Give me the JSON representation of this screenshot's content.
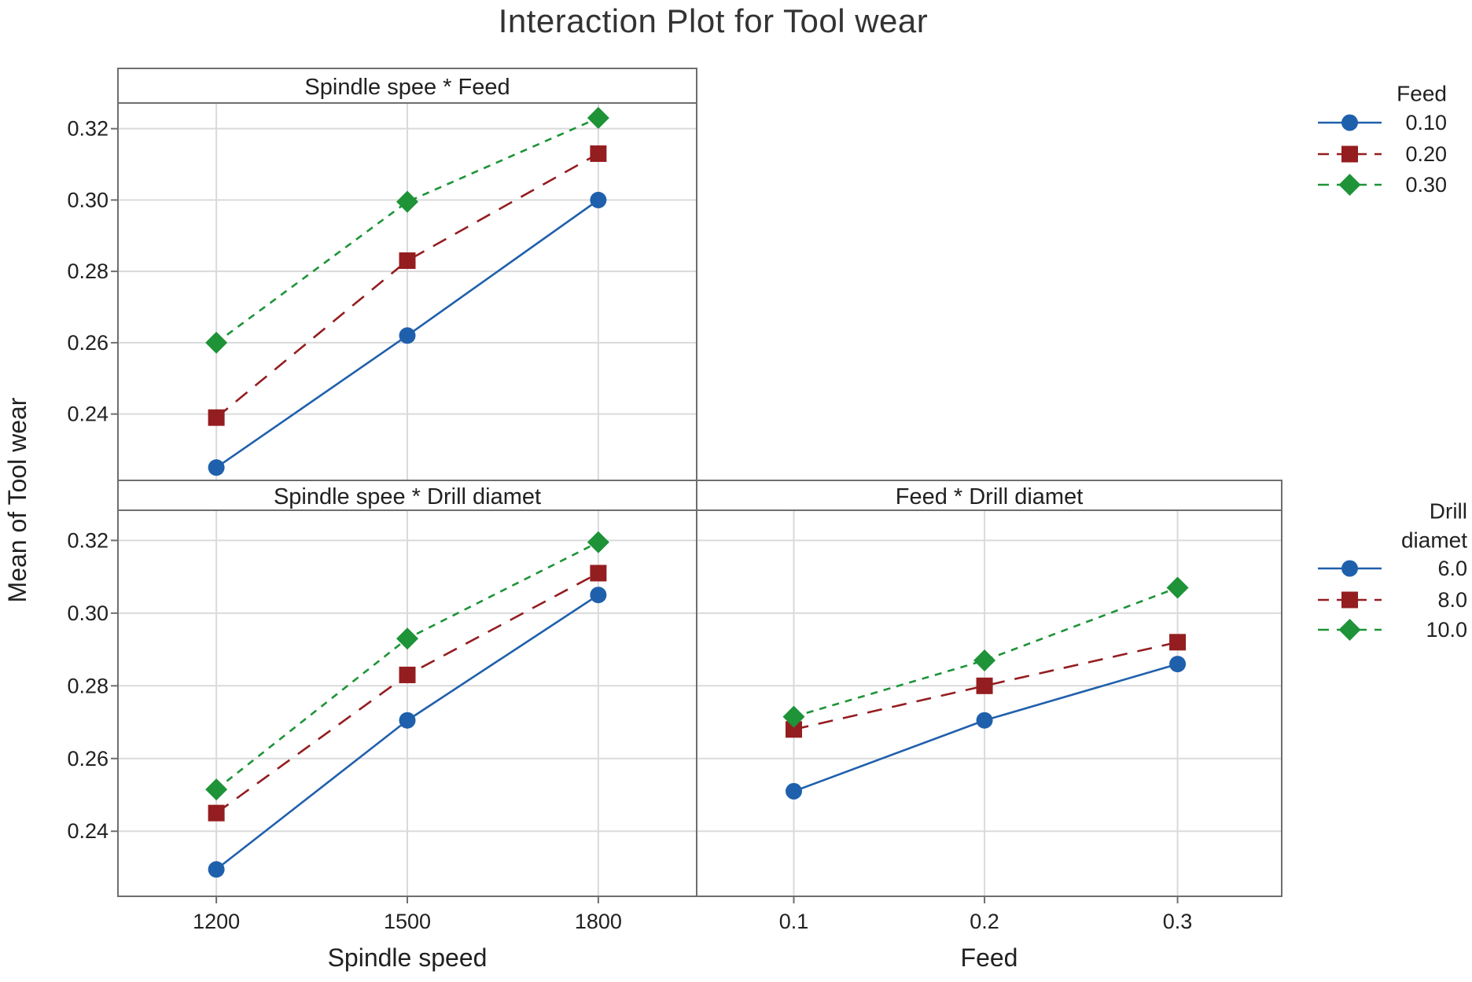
{
  "title": "Interaction Plot for Tool wear",
  "y_axis_label": "Mean of Tool wear",
  "colors": {
    "frame": "#6E6E6E",
    "grid": "#DADADA",
    "text": "#212121",
    "title_text": "#333333",
    "background": "#FFFFFF"
  },
  "series_styles": {
    "blue": {
      "color": "#1F60AC",
      "marker": "circle",
      "line_style": "solid"
    },
    "red": {
      "color": "#941D20",
      "marker": "square",
      "line_style": "long-dash"
    },
    "green": {
      "color": "#1E9338",
      "marker": "diamond",
      "line_style": "short-dash"
    }
  },
  "chart_data": [
    {
      "type": "line",
      "title": "Spindle spee * Feed",
      "x_labels": [
        "1200",
        "1500",
        "1800"
      ],
      "x_axis_label": "",
      "yticks": [
        {
          "label": "0.32",
          "value": 0.32
        },
        {
          "label": "0.30",
          "value": 0.3
        },
        {
          "label": "0.28",
          "value": 0.28
        },
        {
          "label": "0.26",
          "value": 0.26
        },
        {
          "label": "0.24",
          "value": 0.24
        }
      ],
      "ylim": [
        0.2214,
        0.3272
      ],
      "series": [
        {
          "name": "0.10",
          "style": "blue",
          "values": [
            0.225,
            0.262,
            0.3
          ]
        },
        {
          "name": "0.20",
          "style": "red",
          "values": [
            0.239,
            0.283,
            0.313
          ]
        },
        {
          "name": "0.30",
          "style": "green",
          "values": [
            0.26,
            0.2995,
            0.323
          ]
        }
      ]
    },
    {
      "type": "line",
      "title": "Spindle spee * Drill diamet",
      "x_labels": [
        "1200",
        "1500",
        "1800"
      ],
      "x_axis_label": "Spindle speed",
      "yticks": [
        {
          "label": "0.32",
          "value": 0.32
        },
        {
          "label": "0.30",
          "value": 0.3
        },
        {
          "label": "0.28",
          "value": 0.28
        },
        {
          "label": "0.26",
          "value": 0.26
        },
        {
          "label": "0.24",
          "value": 0.24
        }
      ],
      "ylim": [
        0.2221,
        0.3283
      ],
      "series": [
        {
          "name": "6.0",
          "style": "blue",
          "values": [
            0.2295,
            0.2705,
            0.305
          ]
        },
        {
          "name": "8.0",
          "style": "red",
          "values": [
            0.245,
            0.283,
            0.311
          ]
        },
        {
          "name": "10.0",
          "style": "green",
          "values": [
            0.2515,
            0.293,
            0.3195
          ]
        }
      ]
    },
    {
      "type": "line",
      "title": "Feed * Drill diamet",
      "x_labels": [
        "0.1",
        "0.2",
        "0.3"
      ],
      "x_axis_label": "Feed",
      "yticks": [
        {
          "label": "0.32",
          "value": 0.32
        },
        {
          "label": "0.30",
          "value": 0.3
        },
        {
          "label": "0.28",
          "value": 0.28
        },
        {
          "label": "0.26",
          "value": 0.26
        },
        {
          "label": "0.24",
          "value": 0.24
        }
      ],
      "ylim": [
        0.2221,
        0.3283
      ],
      "series": [
        {
          "name": "6.0",
          "style": "blue",
          "values": [
            0.251,
            0.2705,
            0.286
          ]
        },
        {
          "name": "8.0",
          "style": "red",
          "values": [
            0.268,
            0.28,
            0.292
          ]
        },
        {
          "name": "10.0",
          "style": "green",
          "values": [
            0.2715,
            0.287,
            0.307
          ]
        }
      ]
    }
  ],
  "legends": [
    {
      "title_lines": [
        "Feed"
      ],
      "items": [
        {
          "label": "0.10",
          "style": "blue"
        },
        {
          "label": "0.20",
          "style": "red"
        },
        {
          "label": "0.30",
          "style": "green"
        }
      ]
    },
    {
      "title_lines": [
        "Drill",
        "diamet"
      ],
      "items": [
        {
          "label": "6.0",
          "style": "blue"
        },
        {
          "label": "8.0",
          "style": "red"
        },
        {
          "label": "10.0",
          "style": "green"
        }
      ]
    }
  ]
}
